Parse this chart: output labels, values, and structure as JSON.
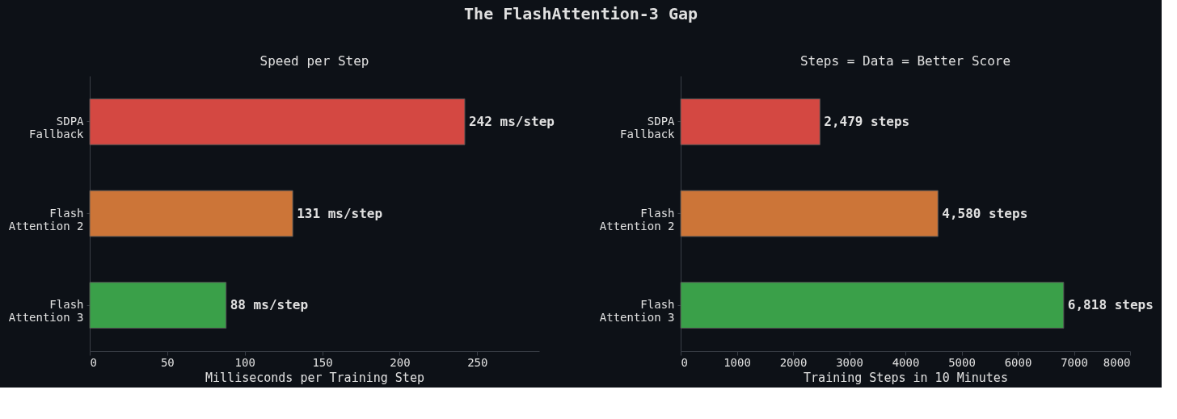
{
  "chart_data": [
    {
      "type": "bar",
      "orientation": "horizontal",
      "title": "Speed per Step",
      "xlabel": "Milliseconds per Training Step",
      "annotations": [
        "The FlashAttention-3 Gap"
      ],
      "categories": [
        "SDPA Fallback",
        "Flash Attention 2",
        "Flash Attention 3"
      ],
      "values": [
        242,
        131,
        88
      ],
      "colors": [
        "#d44842",
        "#cc7538",
        "#3aa049"
      ],
      "value_labels": [
        "242 ms/step",
        "131 ms/step",
        "88 ms/step"
      ],
      "xlim": [
        0,
        290
      ],
      "xticks": [
        0,
        50,
        100,
        150,
        200,
        250
      ],
      "grid": false
    },
    {
      "type": "bar",
      "orientation": "horizontal",
      "title": "Steps = Data = Better Score",
      "xlabel": "Training Steps in 10 Minutes",
      "categories": [
        "SDPA Fallback",
        "Flash Attention 2",
        "Flash Attention 3"
      ],
      "values": [
        2479,
        4580,
        6818
      ],
      "colors": [
        "#d44842",
        "#cc7538",
        "#3aa049"
      ],
      "value_labels": [
        "2,479 steps",
        "4,580 steps",
        "6,818 steps"
      ],
      "xlim": [
        0,
        8000
      ],
      "xticks": [
        0,
        1000,
        2000,
        3000,
        4000,
        5000,
        6000,
        7000,
        8000
      ],
      "grid": false
    }
  ]
}
